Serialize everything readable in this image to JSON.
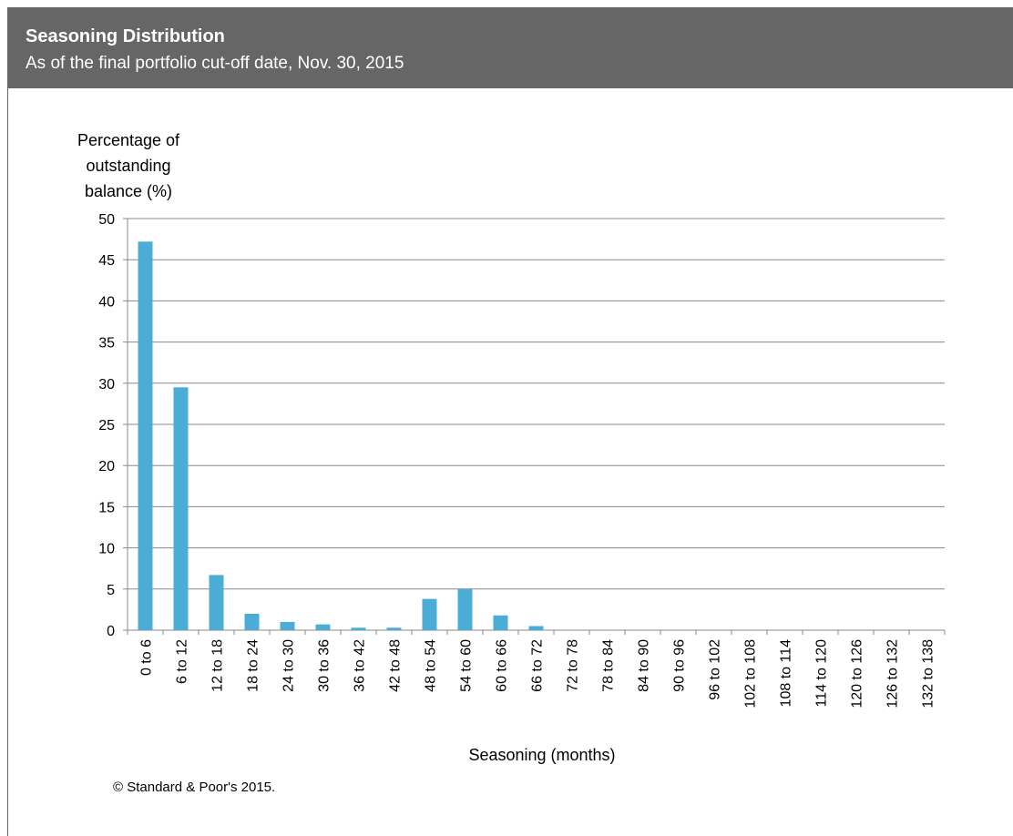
{
  "chart_data": {
    "type": "bar",
    "title": "Seasoning Distribution",
    "subtitle": "As of the final portfolio  cut-off date, Nov. 30, 2015",
    "y_label": [
      "Percentage of",
      "outstanding",
      "balance (%)"
    ],
    "x_label": "Seasoning (months)",
    "footnote": "© Standard & Poor's 2015.",
    "categories": [
      "0 to 6",
      "6 to 12",
      "12 to 18",
      "18 to 24",
      "24 to 30",
      "30 to 36",
      "36 to 42",
      "42 to 48",
      "48 to 54",
      "54 to 60",
      "60 to 66",
      "66 to 72",
      "72 to 78",
      "78 to 84",
      "84 to 90",
      "90 to 96",
      "96 to 102",
      "102 to 108",
      "108 to 114",
      "114 to 120",
      "120 to 126",
      "126 to 132",
      "132 to 138"
    ],
    "values": [
      47.2,
      29.5,
      6.7,
      2.0,
      1.0,
      0.7,
      0.3,
      0.3,
      3.8,
      5.0,
      1.8,
      0.5,
      0,
      0,
      0,
      0,
      0,
      0,
      0,
      0,
      0,
      0,
      0
    ],
    "color": "#4bacd6",
    "ylim": [
      0,
      50
    ],
    "yticks": [
      0,
      5,
      10,
      15,
      20,
      25,
      30,
      35,
      40,
      45,
      50
    ],
    "grid": true
  }
}
